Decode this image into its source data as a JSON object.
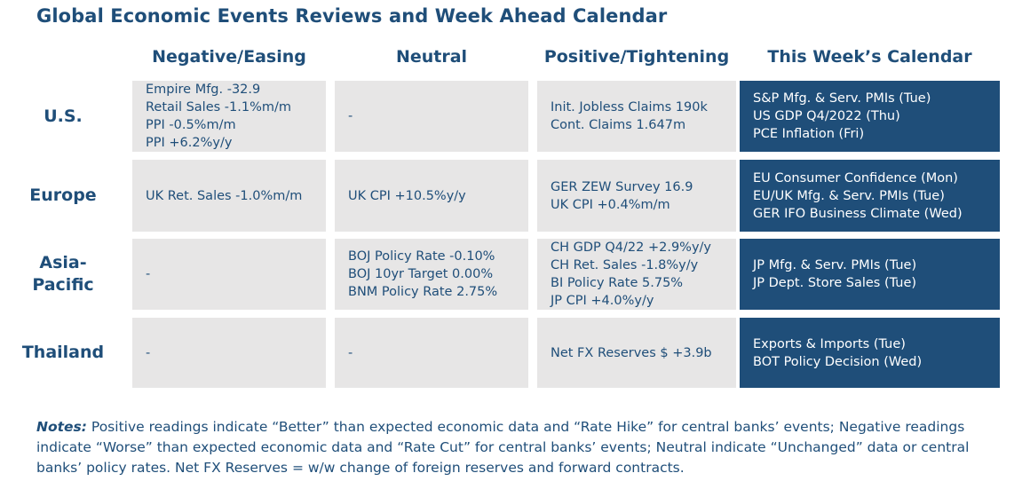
{
  "title": "Global Economic Events Reviews and Week Ahead Calendar",
  "columns": [
    "Negative/Easing",
    "Neutral",
    "Positive/Tightening",
    "This Week’s Calendar"
  ],
  "rows": [
    {
      "region": "U.S.",
      "negative": [
        "Empire Mfg. -32.9",
        "Retail Sales -1.1%m/m",
        "PPI -0.5%m/m",
        "PPI +6.2%y/y"
      ],
      "neutral": [
        "-"
      ],
      "positive": [
        "Init. Jobless Claims 190k",
        "Cont. Claims 1.647m"
      ],
      "calendar": [
        "S&P Mfg. & Serv. PMIs (Tue)",
        "US GDP Q4/2022 (Thu)",
        "PCE Inflation (Fri)"
      ]
    },
    {
      "region": "Europe",
      "negative": [
        "UK Ret. Sales -1.0%m/m"
      ],
      "neutral": [
        "UK CPI +10.5%y/y"
      ],
      "positive": [
        "GER ZEW Survey 16.9",
        "UK CPI +0.4%m/m"
      ],
      "calendar": [
        "EU Consumer Confidence (Mon)",
        "EU/UK Mfg. & Serv. PMIs (Tue)",
        "GER IFO Business Climate (Wed)"
      ]
    },
    {
      "region": "Asia-Pacific",
      "region_lines": [
        "Asia-",
        "Pacific"
      ],
      "negative": [
        "-"
      ],
      "neutral": [
        "BOJ Policy Rate -0.10%",
        "BOJ 10yr Target 0.00%",
        "BNM Policy Rate 2.75%"
      ],
      "positive": [
        "CH GDP Q4/22 +2.9%y/y",
        "CH Ret. Sales -1.8%y/y",
        "BI Policy Rate 5.75%",
        "JP CPI +4.0%y/y"
      ],
      "calendar": [
        "JP Mfg. & Serv. PMIs (Tue)",
        "JP Dept. Store Sales (Tue)"
      ]
    },
    {
      "region": "Thailand",
      "negative": [
        "-"
      ],
      "neutral": [
        "-"
      ],
      "positive": [
        "Net FX Reserves $ +3.9b"
      ],
      "calendar": [
        "Exports & Imports (Tue)",
        "BOT Policy Decision (Wed)"
      ]
    }
  ],
  "notes": {
    "label": "Notes:",
    "text": "Positive readings indicate “Better” than expected economic data and “Rate Hike” for central banks’ events; Negative readings indicate “Worse” than expected economic data and “Rate Cut” for central banks’ events; Neutral indicate “Unchanged” data or central banks’ policy rates. Net FX Reserves = w/w change of foreign reserves and forward contracts."
  },
  "colors": {
    "heading": "#1f4e79",
    "cell_bg": "#e7e6e6",
    "calendar_bg": "#1f4e79"
  }
}
